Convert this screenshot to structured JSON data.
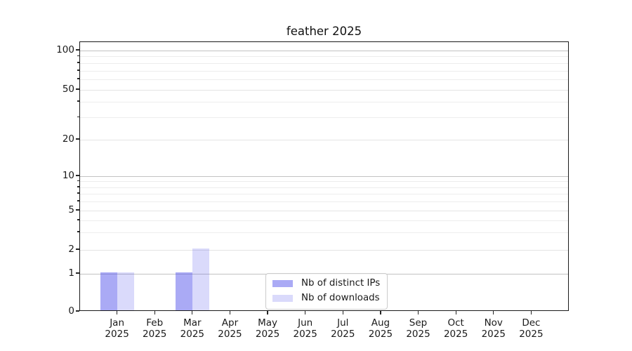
{
  "chart_data": {
    "type": "bar",
    "title": "feather 2025",
    "categories": [
      "Jan",
      "Feb",
      "Mar",
      "Apr",
      "May",
      "Jun",
      "Jul",
      "Aug",
      "Sep",
      "Oct",
      "Nov",
      "Dec"
    ],
    "x_year_label": "2025",
    "series": [
      {
        "name": "Nb of distinct IPs",
        "fill": "rgba(85,85,235,0.5)",
        "values": [
          1,
          0,
          1,
          0,
          0,
          0,
          0,
          0,
          0,
          0,
          0,
          0
        ]
      },
      {
        "name": "Nb of downloads",
        "fill": "rgba(85,85,235,0.22)",
        "values": [
          1,
          0,
          2,
          0,
          0,
          0,
          0,
          0,
          0,
          0,
          0,
          0
        ]
      }
    ],
    "yaxis": {
      "scale": "symlog",
      "tick_labels": [
        0,
        1,
        2,
        5,
        10,
        20,
        50,
        100
      ],
      "range": [
        0,
        100
      ],
      "grid": "both"
    },
    "legend": {
      "position": "lower center"
    }
  }
}
